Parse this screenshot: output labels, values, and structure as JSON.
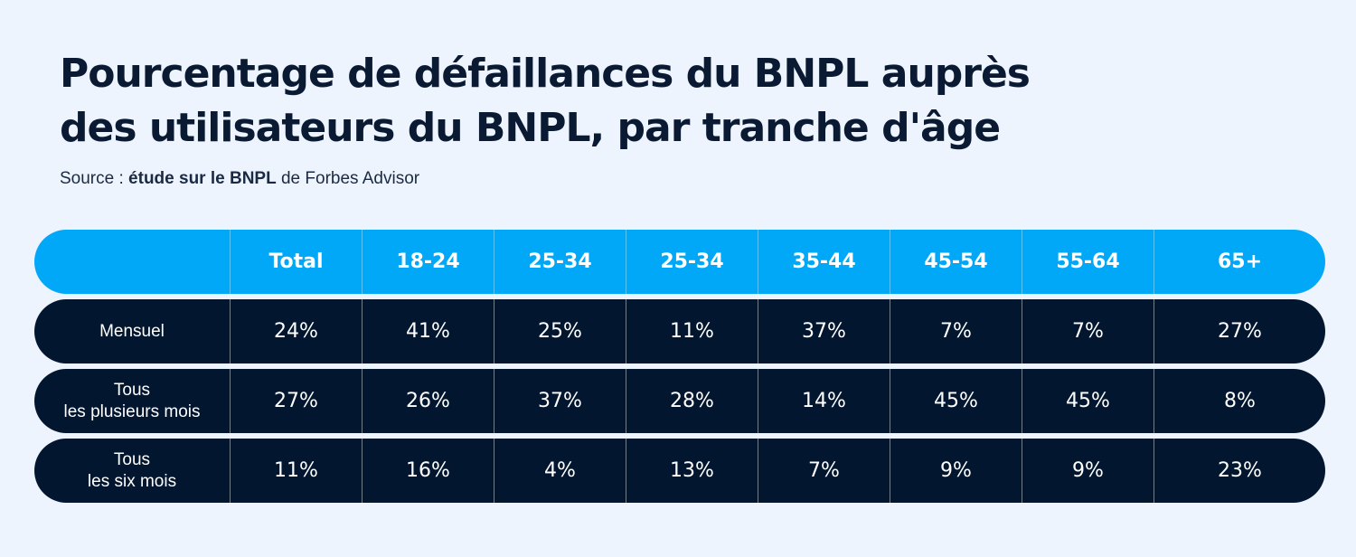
{
  "title_line1": "Pourcentage de défaillances du BNPL auprès",
  "title_line2": "des utilisateurs du BNPL, par tranche d'âge",
  "source_prefix": "Source : ",
  "source_bold": "étude sur le BNPL",
  "source_suffix": " de Forbes Advisor",
  "colors": {
    "background": "#edf4fe",
    "header": "#00a8f7",
    "rows": "#03162f",
    "title": "#0b1a33"
  },
  "chart_data": {
    "type": "table",
    "title": "Pourcentage de défaillances du BNPL auprès des utilisateurs du BNPL, par tranche d'âge",
    "columns": [
      "",
      "Total",
      "18-24",
      "25-34",
      "25-34",
      "35-44",
      "45-54",
      "55-64",
      "65+"
    ],
    "rows": [
      {
        "label_lines": [
          "Mensuel"
        ],
        "values": [
          "24%",
          "41%",
          "25%",
          "11%",
          "37%",
          "7%",
          "7%",
          "27%"
        ]
      },
      {
        "label_lines": [
          "Tous",
          "les plusieurs mois"
        ],
        "values": [
          "27%",
          "26%",
          "37%",
          "28%",
          "14%",
          "45%",
          "45%",
          "8%"
        ]
      },
      {
        "label_lines": [
          "Tous",
          "les six mois"
        ],
        "values": [
          "11%",
          "16%",
          "4%",
          "13%",
          "7%",
          "9%",
          "9%",
          "23%"
        ]
      }
    ]
  }
}
